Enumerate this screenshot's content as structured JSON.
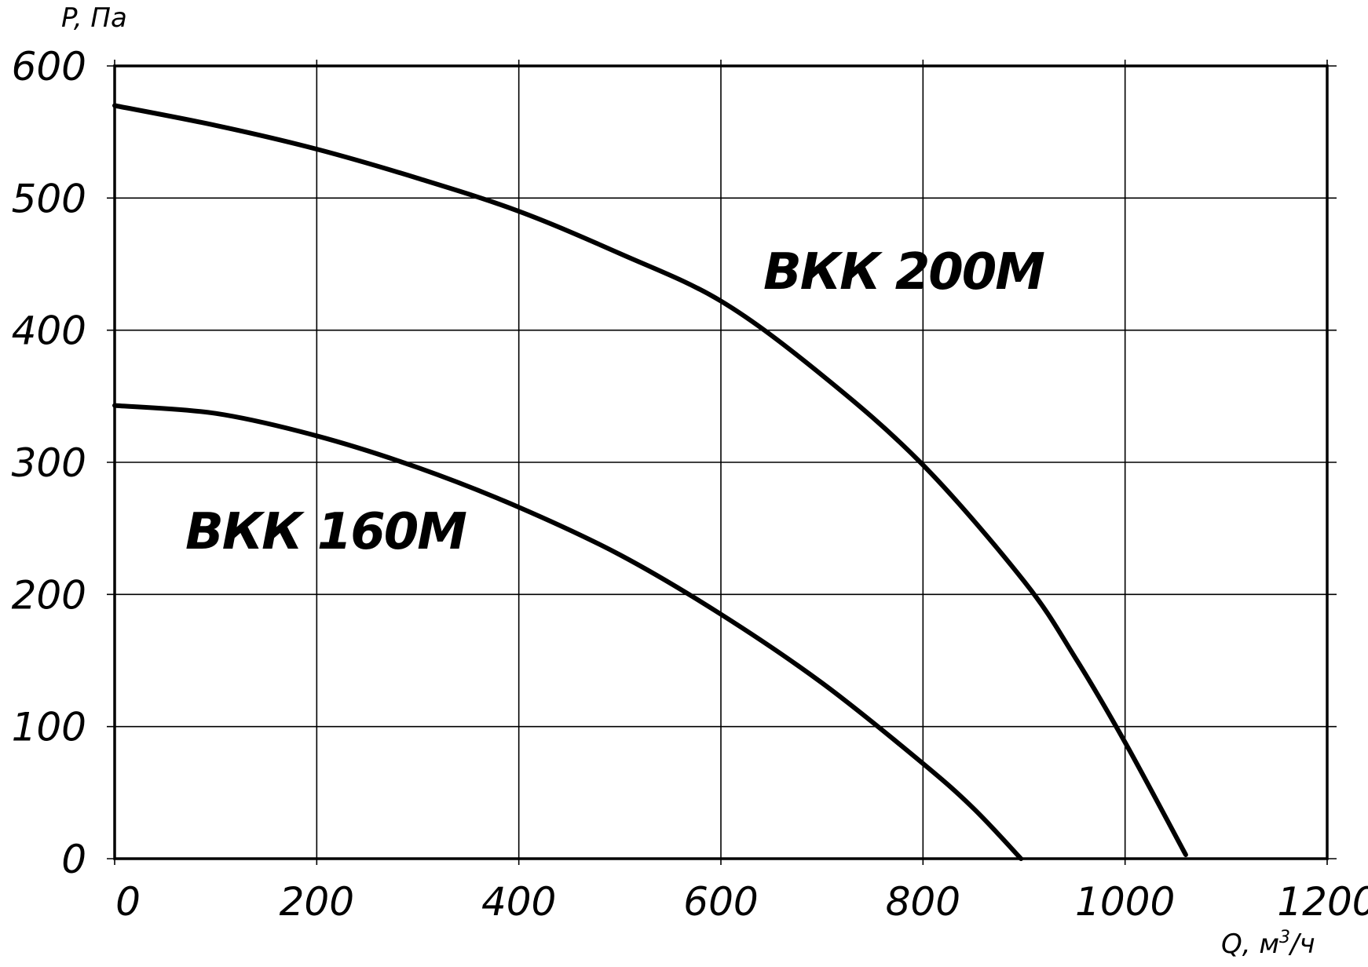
{
  "chart_data": {
    "type": "line",
    "ylabel": "P, Па",
    "xlabel_prefix": "Q, м",
    "xlabel_sup": "3",
    "xlabel_suffix": "/ч",
    "xlim": [
      0,
      1200
    ],
    "ylim": [
      0,
      600
    ],
    "x_ticks": [
      0,
      200,
      400,
      600,
      800,
      1000,
      1200
    ],
    "y_ticks": [
      0,
      100,
      200,
      300,
      400,
      500,
      600
    ],
    "x_tick_labels": [
      "0",
      "200",
      "400",
      "600",
      "800",
      "1000",
      "1200"
    ],
    "y_tick_labels": [
      "0",
      "100",
      "200",
      "300",
      "400",
      "500",
      "600"
    ],
    "grid": true,
    "series": [
      {
        "name": "ВКК 160М",
        "x": [
          0,
          100,
          200,
          300,
          400,
          500,
          600,
          700,
          800,
          850,
          897
        ],
        "y": [
          343,
          337,
          320,
          296,
          266,
          230,
          185,
          133,
          72,
          38,
          0
        ]
      },
      {
        "name": "ВКК 200М",
        "x": [
          0,
          100,
          200,
          300,
          400,
          500,
          600,
          700,
          800,
          900,
          950,
          1000,
          1060
        ],
        "y": [
          570,
          555,
          537,
          515,
          490,
          458,
          422,
          366,
          298,
          210,
          153,
          88,
          3
        ]
      }
    ],
    "series_colors": [
      "#000000",
      "#000000"
    ]
  }
}
